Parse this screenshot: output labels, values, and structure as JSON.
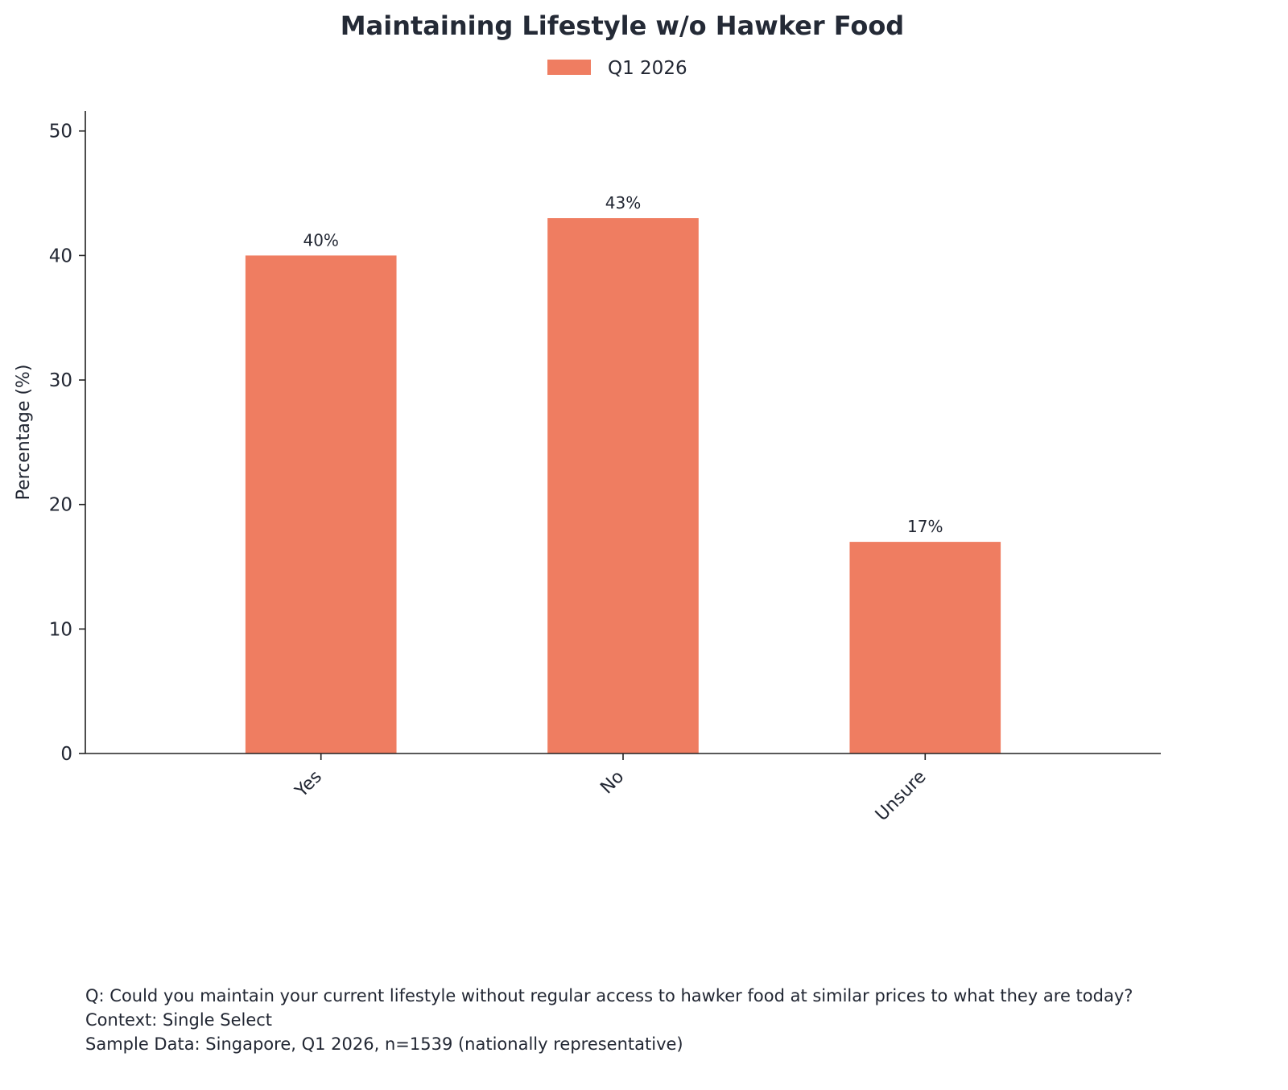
{
  "chart_data": {
    "type": "bar",
    "title": "Maintaining Lifestyle w/o Hawker Food",
    "categories": [
      "Yes",
      "No",
      "Unsure"
    ],
    "series": [
      {
        "name": "Q1 2026",
        "values": [
          40,
          43,
          17
        ],
        "color": "#ef7d61"
      }
    ],
    "data_labels": [
      "40%",
      "43%",
      "17%"
    ],
    "xlabel": "",
    "ylabel": "Percentage (%)",
    "ylim": [
      0,
      51.6
    ],
    "yticks": [
      0,
      10,
      20,
      30,
      40,
      50
    ],
    "ytick_labels": [
      "0",
      "10",
      "20",
      "30",
      "40",
      "50"
    ],
    "grid": false,
    "legend_position": "top-center"
  },
  "footnotes": {
    "question": "Q: Could you maintain your current lifestyle without regular access to hawker food at similar prices to what they are today?",
    "context": "Context: Single Select",
    "sample": "Sample Data: Singapore, Q1 2026, n=1539 (nationally representative)"
  },
  "colors": {
    "bar": "#ef7d61",
    "text": "#222733",
    "axis": "#222222",
    "background": "#ffffff"
  }
}
